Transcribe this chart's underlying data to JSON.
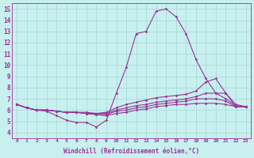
{
  "bg_color": "#c8f0ee",
  "grid_color": "#a0d8d5",
  "line_color": "#993399",
  "marker": "D",
  "markersize": 1.5,
  "linewidth": 0.8,
  "xlabel": "Windchill (Refroidissement éolien,°C)",
  "xlim": [
    -0.5,
    23.5
  ],
  "ylim": [
    3.5,
    15.5
  ],
  "xticks": [
    0,
    1,
    2,
    3,
    4,
    5,
    6,
    7,
    8,
    9,
    10,
    11,
    12,
    13,
    14,
    15,
    16,
    17,
    18,
    19,
    20,
    21,
    22,
    23
  ],
  "yticks": [
    4,
    5,
    6,
    7,
    8,
    9,
    10,
    11,
    12,
    13,
    14,
    15
  ],
  "lines": [
    [
      6.5,
      6.2,
      6.0,
      5.9,
      5.5,
      5.1,
      4.9,
      4.9,
      4.5,
      5.1,
      7.5,
      9.8,
      12.8,
      13.0,
      14.8,
      15.0,
      14.3,
      12.8,
      10.5,
      8.8,
      7.5,
      7.5,
      6.3,
      6.3
    ],
    [
      6.5,
      6.2,
      6.0,
      6.0,
      5.9,
      5.8,
      5.8,
      5.8,
      5.7,
      5.8,
      6.2,
      6.5,
      6.7,
      6.9,
      7.1,
      7.2,
      7.3,
      7.4,
      7.7,
      8.5,
      8.8,
      7.5,
      6.5,
      6.3
    ],
    [
      6.5,
      6.2,
      6.0,
      6.0,
      5.9,
      5.8,
      5.8,
      5.7,
      5.7,
      5.7,
      6.0,
      6.2,
      6.4,
      6.5,
      6.7,
      6.8,
      6.9,
      7.0,
      7.2,
      7.5,
      7.5,
      7.0,
      6.4,
      6.3
    ],
    [
      6.5,
      6.2,
      6.0,
      6.0,
      5.9,
      5.8,
      5.8,
      5.7,
      5.6,
      5.6,
      5.9,
      6.0,
      6.2,
      6.3,
      6.5,
      6.6,
      6.7,
      6.8,
      7.0,
      7.0,
      7.0,
      6.8,
      6.3,
      6.3
    ],
    [
      6.5,
      6.2,
      6.0,
      6.0,
      5.9,
      5.8,
      5.8,
      5.7,
      5.6,
      5.5,
      5.7,
      5.8,
      6.0,
      6.1,
      6.3,
      6.4,
      6.5,
      6.5,
      6.6,
      6.6,
      6.6,
      6.5,
      6.3,
      6.3
    ]
  ]
}
